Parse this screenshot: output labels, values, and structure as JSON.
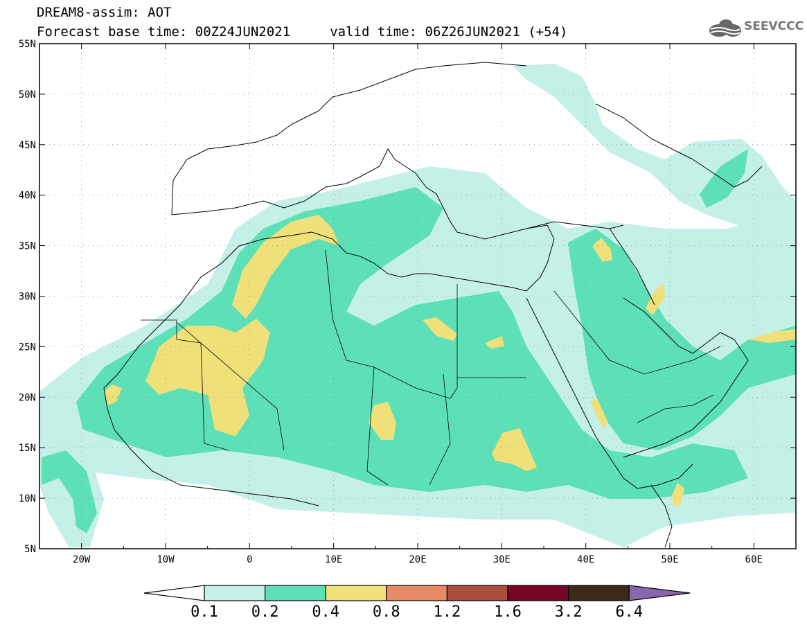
{
  "header": {
    "title_line1": "DREAM8-assim: AOT",
    "title_line2": "Forecast base time: 00Z24JUN2021     valid time: 06Z26JUN2021 (+54)",
    "logo_text": "SEEVCCC",
    "logo_icon": "cloud-logo-icon"
  },
  "map": {
    "projection": "lat-lon",
    "lon_range": [
      -25,
      65
    ],
    "lat_range": [
      5,
      55
    ],
    "lat_ticks": [
      "55N",
      "50N",
      "45N",
      "40N",
      "35N",
      "30N",
      "25N",
      "20N",
      "15N",
      "10N",
      "5N"
    ],
    "lon_ticks": [
      "20W",
      "10W",
      "0",
      "10E",
      "20E",
      "30E",
      "40E",
      "50E",
      "60E"
    ],
    "grid": "dotted",
    "variable": "AOT"
  },
  "colorbar": {
    "labels": [
      "0.1",
      "0.2",
      "0.4",
      "0.8",
      "1.2",
      "1.6",
      "3.2",
      "6.4"
    ],
    "colors": [
      "#ffffff",
      "#c5f0e8",
      "#5ddfb8",
      "#f0e07a",
      "#e88a66",
      "#aa4e3f",
      "#780526",
      "#3c2a16",
      "#8a66aa"
    ]
  }
}
